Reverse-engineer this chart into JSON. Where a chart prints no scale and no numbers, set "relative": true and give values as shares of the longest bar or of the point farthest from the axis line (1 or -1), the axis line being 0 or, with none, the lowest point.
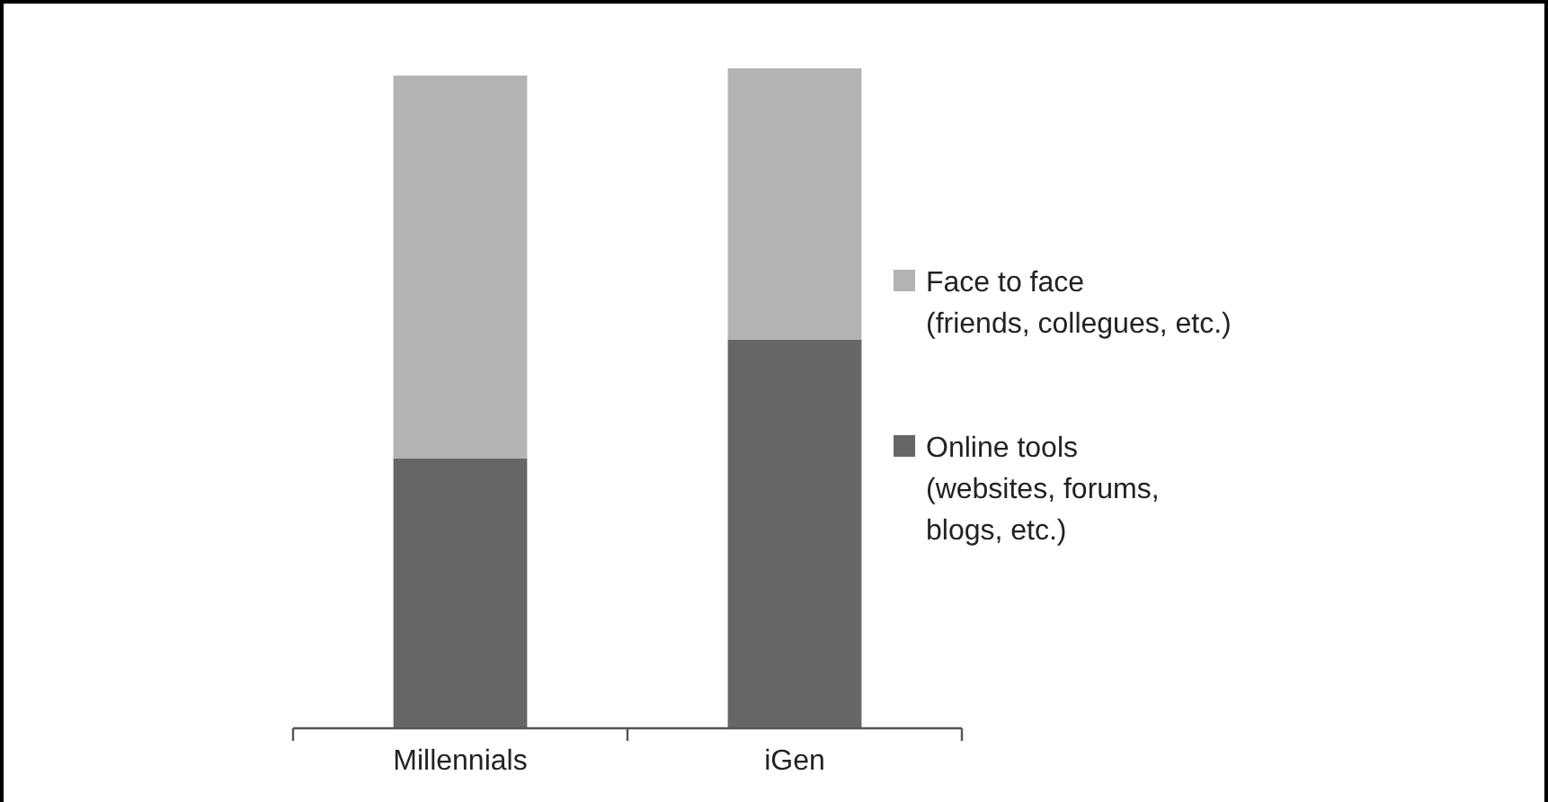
{
  "chart_data": {
    "type": "bar",
    "stacked": true,
    "relative": true,
    "categories": [
      "Millennials",
      "iGen"
    ],
    "series": [
      {
        "name": "Online tools\n(websites, forums,\nblogs, etc.)",
        "color": "#666666",
        "values": [
          0.409,
          0.589
        ]
      },
      {
        "name": "Face to face\n(friends, collegues, etc.)",
        "color": "#b3b3b3",
        "values": [
          0.58,
          0.411
        ]
      }
    ],
    "legend": "right"
  }
}
